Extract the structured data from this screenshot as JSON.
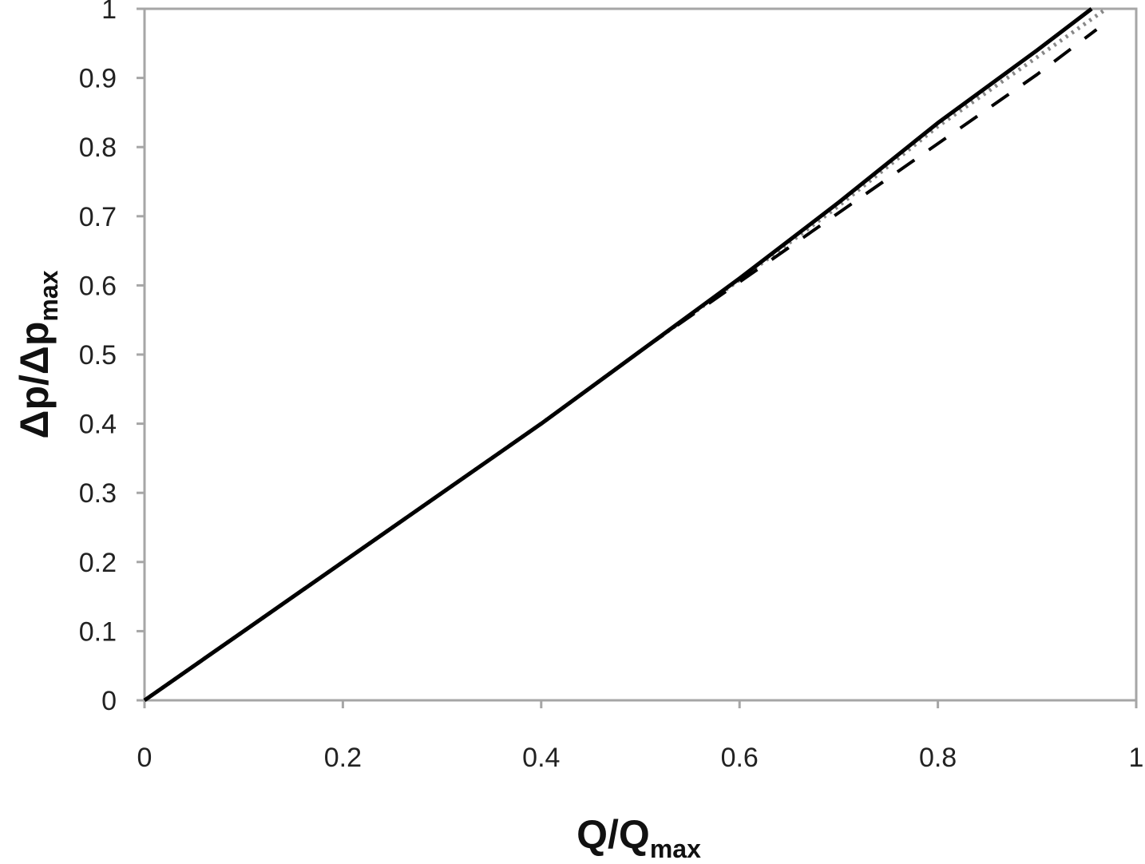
{
  "chart_data": {
    "type": "line",
    "xlabel": "Q/Q",
    "xlabel_sub": "max",
    "ylabel": "Δp/Δp",
    "ylabel_sub": "max",
    "xlim": [
      0,
      1
    ],
    "ylim": [
      0,
      1
    ],
    "x_ticks": [
      "0",
      "0.2",
      "0.4",
      "0.6",
      "0.8",
      "1"
    ],
    "y_ticks": [
      "0",
      "0.1",
      "0.2",
      "0.3",
      "0.4",
      "0.5",
      "0.6",
      "0.7",
      "0.8",
      "0.9",
      "1"
    ],
    "grid": false,
    "legend": "none",
    "series": [
      {
        "style": "solid",
        "color": "#000000",
        "x": [
          0,
          0.1,
          0.2,
          0.3,
          0.4,
          0.5,
          0.6,
          0.7,
          0.8,
          0.9,
          0.955
        ],
        "y": [
          0,
          0.1,
          0.2,
          0.3,
          0.4,
          0.505,
          0.61,
          0.72,
          0.835,
          0.94,
          1.0
        ]
      },
      {
        "style": "dashed",
        "color": "#000000",
        "x": [
          0,
          0.1,
          0.2,
          0.3,
          0.4,
          0.5,
          0.6,
          0.7,
          0.8,
          0.9,
          0.96
        ],
        "y": [
          0,
          0.1,
          0.2,
          0.3,
          0.4,
          0.505,
          0.605,
          0.705,
          0.805,
          0.905,
          0.97
        ]
      },
      {
        "style": "dotted",
        "color": "#888888",
        "x": [
          0,
          0.1,
          0.2,
          0.3,
          0.4,
          0.5,
          0.6,
          0.7,
          0.8,
          0.9,
          0.97
        ],
        "y": [
          0,
          0.1,
          0.2,
          0.3,
          0.4,
          0.505,
          0.608,
          0.715,
          0.83,
          0.93,
          1.0
        ]
      }
    ]
  }
}
